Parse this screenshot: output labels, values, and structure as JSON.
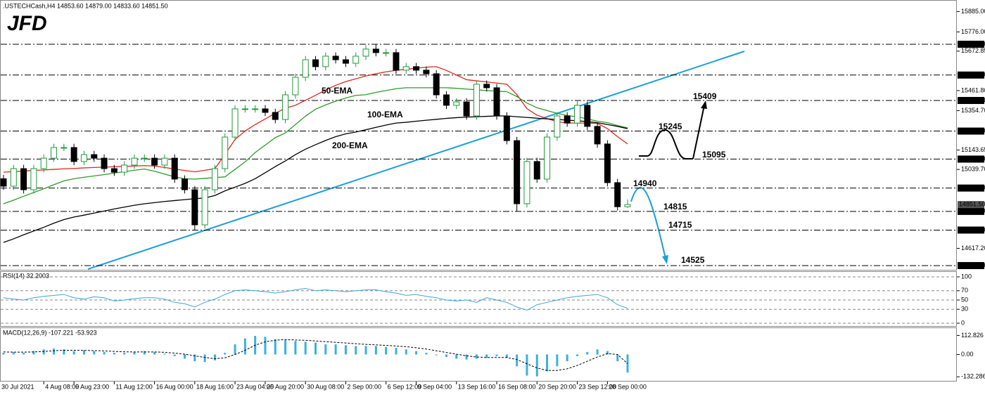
{
  "chart_data": [
    {
      "type": "candlestick",
      "title": ".USTECHCash,H4  14853.60 14879.00 14833.60 14851.50",
      "logo": "JFD",
      "categories": [
        null,
        null,
        null,
        null,
        "4 Aug 08:00",
        null,
        null,
        "9 Aug 23:00",
        null,
        null,
        null,
        "11 Aug 12:00",
        null,
        null,
        null,
        "16 Aug 00:00",
        null,
        null,
        null,
        "18 Aug 16:00",
        null,
        null,
        null,
        "23 Aug 04:00",
        null,
        null,
        "25 Aug 20:00",
        null,
        null,
        null,
        "30 Aug 08:00",
        null,
        null,
        null,
        "2 Sep 00:00",
        null,
        null,
        null,
        "6 Sep 12:00",
        null,
        null,
        "9 Sep 04:00",
        null,
        null,
        null,
        "13 Sep 16:00",
        null,
        null,
        null,
        "16 Sep 08:00",
        null,
        null,
        null,
        "20 Sep 20:00",
        null,
        null,
        null,
        "23 Sep 12:00",
        null,
        null,
        "28 Sep 00:00",
        null,
        null
      ],
      "first_label": "30 Jul 2021",
      "ohlc": {
        "open": [
          14990,
          14950,
          15044,
          14931,
          15044,
          15100,
          15157,
          15157,
          15082,
          15119,
          15100,
          15044,
          15025,
          15063,
          15100,
          15100,
          15063,
          15100,
          14988,
          14931,
          14743,
          14931,
          15044,
          15213,
          15364,
          15364,
          15364,
          15345,
          15307,
          15439,
          15533,
          15627,
          15590,
          15646,
          15627,
          15608,
          15646,
          15684,
          15665,
          15665,
          15571,
          15590,
          15571,
          15552,
          15439,
          15383,
          15401,
          15326,
          15496,
          15477,
          15326,
          15194,
          14856,
          15082,
          14988,
          15213,
          15326,
          15288,
          15383,
          15270,
          15176,
          14969,
          14840
        ],
        "high": [
          15010,
          15064,
          15064,
          15064,
          15120,
          15177,
          15177,
          15177,
          15139,
          15139,
          15120,
          15064,
          15083,
          15120,
          15120,
          15120,
          15120,
          15120,
          15008,
          14951,
          14951,
          15064,
          15233,
          15384,
          15384,
          15384,
          15384,
          15365,
          15459,
          15553,
          15647,
          15647,
          15666,
          15666,
          15647,
          15666,
          15704,
          15710,
          15685,
          15685,
          15610,
          15610,
          15591,
          15572,
          15459,
          15421,
          15421,
          15516,
          15516,
          15497,
          15346,
          15214,
          15102,
          15102,
          15233,
          15346,
          15346,
          15409,
          15403,
          15290,
          15196,
          14989,
          14879
        ],
        "low": [
          14930,
          14930,
          14911,
          14911,
          15024,
          15080,
          15137,
          15062,
          15062,
          15080,
          15024,
          15005,
          15005,
          15043,
          15080,
          15043,
          15043,
          14968,
          14911,
          14715,
          14723,
          14911,
          15024,
          15193,
          15344,
          15344,
          15325,
          15287,
          15287,
          15419,
          15513,
          15570,
          15570,
          15607,
          15588,
          15588,
          15626,
          15645,
          15645,
          15551,
          15551,
          15551,
          15532,
          15419,
          15363,
          15363,
          15306,
          15306,
          15457,
          15306,
          15174,
          14815,
          14836,
          14968,
          14968,
          15193,
          15268,
          15268,
          15250,
          15156,
          14949,
          14820,
          14833.6
        ],
        "close": [
          14950,
          15044,
          14931,
          15044,
          15100,
          15157,
          15157,
          15082,
          15119,
          15100,
          15044,
          15025,
          15063,
          15100,
          15100,
          15063,
          15100,
          14988,
          14931,
          14743,
          14931,
          15044,
          15213,
          15364,
          15364,
          15364,
          15345,
          15307,
          15439,
          15533,
          15627,
          15590,
          15646,
          15627,
          15608,
          15646,
          15684,
          15665,
          15665,
          15571,
          15590,
          15571,
          15552,
          15439,
          15383,
          15401,
          15326,
          15496,
          15477,
          15326,
          15194,
          14856,
          15082,
          14988,
          15213,
          15326,
          15288,
          15383,
          15270,
          15176,
          14969,
          14840,
          14851.5
        ]
      },
      "up_color": "#1f9a3a",
      "down_color": "#000000",
      "series": [
        {
          "name": "50-EMA",
          "color": "#e0261f",
          "values": [
            15025,
            15028,
            15031,
            15034,
            15037,
            15040,
            15043,
            15045,
            15048,
            15050,
            15052,
            15054,
            15056,
            15058,
            15060,
            15058,
            15050,
            15042,
            15034,
            15027,
            15035,
            15044,
            15120,
            15200,
            15245,
            15280,
            15310,
            15340,
            15368,
            15383,
            15410,
            15437,
            15465,
            15490,
            15510,
            15525,
            15540,
            15552,
            15562,
            15570,
            15576,
            15582,
            15587,
            15590,
            15570,
            15545,
            15520,
            15514,
            15508,
            15502,
            15496,
            15440,
            15365,
            15330,
            15312,
            15295,
            15288,
            15288,
            15288,
            15286,
            15258,
            15215,
            15176
          ]
        },
        {
          "name": "100-EMA",
          "color": "#2f9a2f",
          "values": [
            14856,
            14875,
            14896,
            14916,
            14936,
            14958,
            14978,
            14990,
            14998,
            15005,
            15012,
            15020,
            15028,
            15035,
            15042,
            15030,
            15015,
            15000,
            14990,
            14988,
            14992,
            14996,
            15000,
            15040,
            15080,
            15130,
            15170,
            15210,
            15235,
            15280,
            15325,
            15362,
            15385,
            15405,
            15422,
            15436,
            15440,
            15452,
            15462,
            15472,
            15477,
            15477,
            15477,
            15477,
            15477,
            15474,
            15470,
            15466,
            15462,
            15459,
            15456,
            15430,
            15395,
            15370,
            15355,
            15340,
            15328,
            15322,
            15310,
            15298,
            15290,
            15275,
            15262
          ]
        },
        {
          "name": "200-EMA",
          "color": "#000000",
          "values": [
            14649,
            14668,
            14690,
            14710,
            14730,
            14752,
            14771,
            14785,
            14795,
            14806,
            14817,
            14828,
            14838,
            14848,
            14856,
            14862,
            14868,
            14873,
            14878,
            14883,
            14887,
            14900,
            14925,
            14945,
            14965,
            14990,
            15022,
            15055,
            15085,
            15119,
            15148,
            15172,
            15195,
            15215,
            15230,
            15240,
            15252,
            15265,
            15277,
            15288,
            15292,
            15298,
            15303,
            15308,
            15313,
            15317,
            15320,
            15322,
            15324,
            15326,
            15326,
            15322,
            15318,
            15314,
            15310,
            15307,
            15304,
            15300,
            15296,
            15290,
            15280,
            15270,
            15258
          ]
        }
      ],
      "ylim": [
        14506,
        15928
      ],
      "yticks": [
        {
          "value": 15885,
          "label": "15885.00"
        },
        {
          "value": 15776,
          "label": "15776.00"
        },
        {
          "value": 15672.85,
          "label": "15672.85"
        },
        {
          "value": 15461.8,
          "label": "15461.80"
        },
        {
          "value": 15354.7,
          "label": "15354.70"
        },
        {
          "value": 15143.65,
          "label": "15143.65"
        },
        {
          "value": 15039.7,
          "label": "15039.70"
        },
        {
          "value": 14617.2,
          "label": "14617.20"
        }
      ],
      "levels": [
        {
          "value": 15710,
          "label": "15710.00"
        },
        {
          "value": 15545,
          "label": "15545.00"
        },
        {
          "value": 15408.93,
          "label": "15408.93"
        },
        {
          "value": 15245,
          "label": "15245.00"
        },
        {
          "value": 15095,
          "label": "15095.00"
        },
        {
          "value": 14940,
          "label": "14940.00"
        },
        {
          "value": 14815,
          "label": "14815.00"
        },
        {
          "value": 14715,
          "label": "14715.00"
        },
        {
          "value": 14525,
          "label": "14525.00"
        }
      ],
      "last_price": {
        "value": 14851.5,
        "label": "14851.50"
      },
      "annotations": [
        "15409",
        "15245",
        "15095",
        "14940",
        "14815",
        "14715",
        "14525"
      ]
    },
    {
      "type": "line",
      "title": "RSI(14) 32.2003",
      "color": "#3aa6d8",
      "grid": true,
      "values": [
        55,
        52,
        50,
        55,
        58,
        60,
        62,
        55,
        52,
        57,
        55,
        48,
        50,
        53,
        55,
        55,
        52,
        45,
        42,
        35,
        45,
        52,
        62,
        70,
        72,
        70,
        68,
        65,
        68,
        72,
        75,
        70,
        72,
        70,
        68,
        70,
        72,
        72,
        68,
        65,
        60,
        62,
        58,
        55,
        50,
        48,
        50,
        45,
        55,
        50,
        45,
        35,
        28,
        40,
        45,
        50,
        55,
        58,
        60,
        62,
        55,
        40,
        32.2
      ],
      "ylim": [
        0,
        100
      ],
      "yticks": [
        100,
        70,
        50,
        30,
        0
      ]
    },
    {
      "type": "bar",
      "title": "MACD(12,26,9) -107.221 -53.923",
      "series": [
        {
          "type": "bar",
          "color": "#3ab0e0",
          "values": [
            10,
            15,
            10,
            20,
            30,
            35,
            30,
            20,
            25,
            20,
            15,
            10,
            10,
            15,
            20,
            15,
            5,
            -10,
            -25,
            -40,
            -45,
            -35,
            10,
            60,
            95,
            110,
            105,
            90,
            85,
            80,
            75,
            70,
            60,
            60,
            55,
            50,
            50,
            50,
            45,
            40,
            30,
            20,
            10,
            -5,
            -15,
            -25,
            -30,
            -25,
            -20,
            -10,
            -20,
            -70,
            -125,
            -130,
            -100,
            -70,
            -40,
            -10,
            15,
            30,
            20,
            -40,
            -107.221
          ]
        },
        {
          "type": "line",
          "color": "#000000",
          "values": [
            15,
            14,
            14,
            15,
            18,
            22,
            25,
            25,
            24,
            23,
            21,
            18,
            16,
            15,
            15,
            15,
            13,
            8,
            2,
            -8,
            -18,
            -25,
            -20,
            0,
            25,
            55,
            75,
            85,
            88,
            86,
            84,
            80,
            76,
            72,
            68,
            64,
            60,
            57,
            54,
            50,
            46,
            40,
            32,
            22,
            12,
            2,
            -8,
            -15,
            -18,
            -18,
            -18,
            -30,
            -55,
            -80,
            -95,
            -95,
            -85,
            -65,
            -40,
            -15,
            5,
            0,
            -53.923
          ]
        }
      ],
      "ylim": [
        -148,
        152
      ],
      "yticks": [
        {
          "value": 112.826,
          "label": "112.826"
        },
        {
          "value": 0,
          "label": "0.00"
        },
        {
          "value": -132.286,
          "label": "-132.286"
        }
      ]
    }
  ]
}
